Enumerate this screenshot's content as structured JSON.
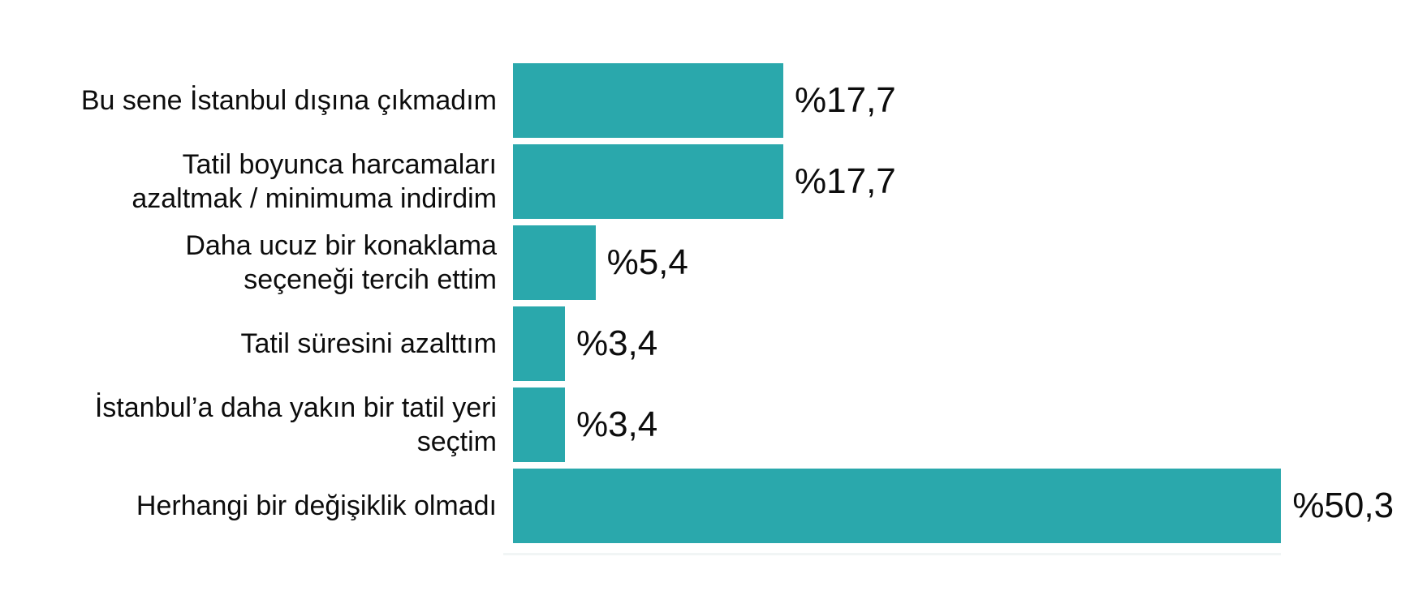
{
  "page": {
    "background_color": "#ffffff"
  },
  "chart_data": {
    "type": "bar",
    "orientation": "horizontal",
    "title": "",
    "xlabel": "",
    "ylabel": "",
    "xlim": [
      0,
      59
    ],
    "grid": false,
    "legend": false,
    "bar_color": "#2AA8AC",
    "text_color": "#0d0d0d",
    "axis_line_color": "#f1f5f5",
    "categories": [
      "Bu sene İstanbul dışına çıkmadım",
      "Tatil boyunca harcamaları azaltmak / minimuma indirdim",
      "Daha ucuz bir konaklama seçeneği tercih ettim",
      "Tatil süresini azalttım",
      "İstanbul’a daha yakın bir tatil yeri seçtim",
      "Herhangi bir değişiklik olmadı"
    ],
    "category_lines": [
      [
        "Bu sene İstanbul dışına çıkmadım"
      ],
      [
        "Tatil boyunca harcamaları",
        "azaltmak / minimuma indirdim"
      ],
      [
        "Daha ucuz bir konaklama",
        "seçeneği tercih ettim"
      ],
      [
        "Tatil süresini azalttım"
      ],
      [
        "İstanbul’a daha yakın bir tatil yeri",
        "seçtim"
      ],
      [
        "Herhangi bir değişiklik olmadı"
      ]
    ],
    "values": [
      17.7,
      17.7,
      5.4,
      3.4,
      3.4,
      50.3
    ],
    "value_labels": [
      "%17,7",
      "%17,7",
      "%5,4",
      "%3,4",
      "%3,4",
      "%50,3"
    ]
  }
}
